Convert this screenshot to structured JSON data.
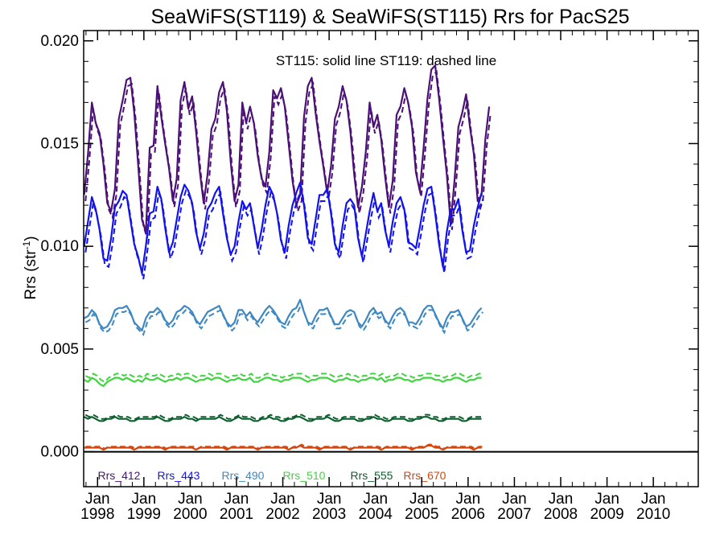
{
  "chart_data": {
    "type": "line",
    "title": "SeaWiFS(ST119) & SeaWiFS(ST115)  Rrs for PacS25",
    "annotation": "ST115: solid line   ST119: dashed line",
    "ylabel_main": "Rrs (str",
    "ylabel_sup": "-1",
    "ylabel_close": ")",
    "ylim": [
      -0.0017,
      0.0205
    ],
    "yticks": [
      "0.000",
      "0.005",
      "0.010",
      "0.015",
      "0.020"
    ],
    "ytick_values": [
      0.0,
      0.005,
      0.01,
      0.015,
      0.02
    ],
    "xlim": [
      1997.7,
      2010.97
    ],
    "xtick_month": "Jan",
    "xticks": [
      "1998",
      "1999",
      "2000",
      "2001",
      "2002",
      "2003",
      "2004",
      "2005",
      "2006",
      "2007",
      "2008",
      "2009",
      "2010"
    ],
    "x_start": 1997.71,
    "x_step": 0.0833,
    "styles": {
      "ST115": "solid",
      "ST119": "dashed"
    },
    "series": [
      {
        "name": "Rrs_412",
        "color": "#4b1177",
        "ST115": [
          0.0125,
          0.0145,
          0.017,
          0.016,
          0.0155,
          0.014,
          0.0121,
          0.0117,
          0.0128,
          0.0162,
          0.0171,
          0.0181,
          0.0182,
          0.0165,
          0.014,
          0.0113,
          0.0107,
          0.0148,
          0.0149,
          0.0178,
          0.0163,
          0.015,
          0.0138,
          0.0122,
          0.0133,
          0.0171,
          0.018,
          0.0167,
          0.0173,
          0.0156,
          0.0136,
          0.0121,
          0.0135,
          0.0157,
          0.0162,
          0.0175,
          0.018,
          0.0166,
          0.0141,
          0.0122,
          0.013,
          0.017,
          0.016,
          0.0168,
          0.016,
          0.0144,
          0.0133,
          0.0129,
          0.0146,
          0.0176,
          0.0172,
          0.0177,
          0.0168,
          0.015,
          0.0132,
          0.012,
          0.0125,
          0.0163,
          0.0178,
          0.0182,
          0.0165,
          0.0151,
          0.0139,
          0.0126,
          0.0139,
          0.0162,
          0.0168,
          0.0178,
          0.0171,
          0.0156,
          0.0135,
          0.0119,
          0.0129,
          0.0146,
          0.017,
          0.0158,
          0.0164,
          0.0152,
          0.0134,
          0.0119,
          0.0132,
          0.0164,
          0.0168,
          0.0177,
          0.017,
          0.0158,
          0.0136,
          0.0127,
          0.0148,
          0.0172,
          0.0186,
          0.0188,
          0.0172,
          0.0153,
          0.0135,
          0.0111,
          0.0132,
          0.0158,
          0.0165,
          0.0174,
          0.0158,
          0.0145,
          0.0122,
          0.0125,
          0.0152,
          0.0168
        ]
      },
      {
        "name": "Rrs_443",
        "color": "#1212ee",
        "ST115": [
          0.01,
          0.0112,
          0.0124,
          0.0118,
          0.0108,
          0.0094,
          0.0093,
          0.0104,
          0.0119,
          0.0122,
          0.0127,
          0.0125,
          0.0113,
          0.0101,
          0.0095,
          0.0087,
          0.01,
          0.0116,
          0.0117,
          0.0129,
          0.0123,
          0.0109,
          0.0097,
          0.0102,
          0.0113,
          0.0124,
          0.013,
          0.0127,
          0.0121,
          0.0107,
          0.0099,
          0.0106,
          0.0118,
          0.0121,
          0.0126,
          0.0129,
          0.0116,
          0.0104,
          0.0096,
          0.01,
          0.0112,
          0.0122,
          0.0118,
          0.0121,
          0.011,
          0.0099,
          0.0108,
          0.012,
          0.0129,
          0.0125,
          0.0116,
          0.0103,
          0.0097,
          0.011,
          0.012,
          0.0126,
          0.0131,
          0.012,
          0.0104,
          0.0101,
          0.0113,
          0.0125,
          0.0125,
          0.0128,
          0.0116,
          0.0101,
          0.0097,
          0.011,
          0.0121,
          0.0123,
          0.012,
          0.0104,
          0.0095,
          0.0106,
          0.0117,
          0.0126,
          0.0117,
          0.0121,
          0.0108,
          0.01,
          0.0112,
          0.0121,
          0.0124,
          0.0118,
          0.0102,
          0.0101,
          0.0099,
          0.0109,
          0.012,
          0.0128,
          0.0129,
          0.0116,
          0.0101,
          0.009,
          0.0107,
          0.0118,
          0.0118,
          0.0123,
          0.0108,
          0.0097,
          0.0098,
          0.011,
          0.0119,
          0.0126
        ]
      },
      {
        "name": "Rrs_490",
        "color": "#3d88c2",
        "ST115": [
          0.0065,
          0.0066,
          0.0069,
          0.0067,
          0.0062,
          0.006,
          0.0061,
          0.0064,
          0.0069,
          0.007,
          0.007,
          0.0071,
          0.0068,
          0.0063,
          0.0061,
          0.0059,
          0.0065,
          0.0068,
          0.0068,
          0.007,
          0.0068,
          0.0064,
          0.0062,
          0.0064,
          0.0068,
          0.0069,
          0.0071,
          0.007,
          0.0068,
          0.0064,
          0.0062,
          0.0065,
          0.0068,
          0.0069,
          0.007,
          0.0071,
          0.0067,
          0.0063,
          0.0061,
          0.0063,
          0.0069,
          0.0069,
          0.0066,
          0.0068,
          0.0065,
          0.0063,
          0.0066,
          0.0069,
          0.0071,
          0.0069,
          0.0066,
          0.0063,
          0.0062,
          0.0066,
          0.0069,
          0.007,
          0.0074,
          0.0068,
          0.0063,
          0.0062,
          0.0066,
          0.0069,
          0.0069,
          0.007,
          0.0066,
          0.0062,
          0.0062,
          0.0065,
          0.0068,
          0.0069,
          0.0068,
          0.0063,
          0.0061,
          0.0064,
          0.0068,
          0.007,
          0.0067,
          0.0068,
          0.0064,
          0.0062,
          0.0066,
          0.0069,
          0.007,
          0.0068,
          0.0063,
          0.0063,
          0.0062,
          0.0065,
          0.0069,
          0.0071,
          0.0071,
          0.0067,
          0.0063,
          0.006,
          0.0065,
          0.0068,
          0.0068,
          0.0069,
          0.0065,
          0.0061,
          0.0062,
          0.0065,
          0.0068,
          0.007
        ]
      },
      {
        "name": "Rrs_510",
        "color": "#3fd43f",
        "ST115": [
          0.0035,
          0.0034,
          0.0036,
          0.0035,
          0.0033,
          0.0032,
          0.0034,
          0.0035,
          0.0036,
          0.0036,
          0.0035,
          0.0036,
          0.0035,
          0.0034,
          0.0035,
          0.0034,
          0.0036,
          0.0035,
          0.0035,
          0.0036,
          0.0035,
          0.0034,
          0.0035,
          0.0035,
          0.0036,
          0.0035,
          0.0036,
          0.0036,
          0.0035,
          0.0034,
          0.0035,
          0.0035,
          0.0036,
          0.0035,
          0.0036,
          0.0036,
          0.0035,
          0.0034,
          0.0035,
          0.0035,
          0.0036,
          0.0035,
          0.0035,
          0.0036,
          0.0034,
          0.0034,
          0.0035,
          0.0036,
          0.0036,
          0.0035,
          0.0035,
          0.0034,
          0.0035,
          0.0035,
          0.0036,
          0.0036,
          0.0036,
          0.0035,
          0.0034,
          0.0035,
          0.0035,
          0.0036,
          0.0036,
          0.0036,
          0.0035,
          0.0034,
          0.0035,
          0.0035,
          0.0036,
          0.0035,
          0.0035,
          0.0034,
          0.0035,
          0.0035,
          0.0036,
          0.0036,
          0.0035,
          0.0036,
          0.0034,
          0.0035,
          0.0035,
          0.0036,
          0.0036,
          0.0035,
          0.0035,
          0.0034,
          0.0035,
          0.0035,
          0.0036,
          0.0036,
          0.0036,
          0.0035,
          0.0035,
          0.0034,
          0.0035,
          0.0035,
          0.0036,
          0.0036,
          0.0035,
          0.0034,
          0.0035,
          0.0035,
          0.0036,
          0.0036
        ]
      },
      {
        "name": "Rrs_555",
        "color": "#0d5e2e",
        "ST115": [
          0.0017,
          0.0016,
          0.0017,
          0.0016,
          0.0015,
          0.0015,
          0.0016,
          0.0016,
          0.0017,
          0.0016,
          0.0016,
          0.0016,
          0.0015,
          0.0015,
          0.0016,
          0.0016,
          0.0016,
          0.0016,
          0.0016,
          0.0017,
          0.0016,
          0.0015,
          0.0015,
          0.0016,
          0.0016,
          0.0016,
          0.0017,
          0.0016,
          0.0016,
          0.0015,
          0.0016,
          0.0016,
          0.0016,
          0.0016,
          0.0016,
          0.0017,
          0.0016,
          0.0015,
          0.0015,
          0.0016,
          0.0017,
          0.0016,
          0.0016,
          0.0016,
          0.0015,
          0.0015,
          0.0016,
          0.0016,
          0.0017,
          0.0016,
          0.0016,
          0.0015,
          0.0015,
          0.0016,
          0.0016,
          0.0017,
          0.0017,
          0.0016,
          0.0015,
          0.0015,
          0.0016,
          0.0016,
          0.0016,
          0.0017,
          0.0016,
          0.0015,
          0.0015,
          0.0016,
          0.0016,
          0.0016,
          0.0016,
          0.0015,
          0.0015,
          0.0016,
          0.0016,
          0.0017,
          0.0016,
          0.0016,
          0.0015,
          0.0015,
          0.0016,
          0.0016,
          0.0016,
          0.0016,
          0.0015,
          0.0015,
          0.0016,
          0.0016,
          0.0017,
          0.0017,
          0.0016,
          0.0016,
          0.0015,
          0.0015,
          0.0016,
          0.0016,
          0.0016,
          0.0016,
          0.0015,
          0.0015,
          0.0016,
          0.0016,
          0.0016,
          0.0016
        ]
      },
      {
        "name": "Rrs_670",
        "color": "#d2470f",
        "ST115": [
          0.0002,
          0.0002,
          0.0002,
          0.0002,
          0.0002,
          0.0001,
          0.0002,
          0.0002,
          0.0002,
          0.0002,
          0.0002,
          0.0002,
          0.0002,
          0.0001,
          0.0002,
          0.0002,
          0.0002,
          0.0002,
          0.0002,
          0.0002,
          0.0002,
          0.0001,
          0.0002,
          0.0002,
          0.0002,
          0.0002,
          0.0002,
          0.0002,
          0.0002,
          0.0001,
          0.0002,
          0.0002,
          0.0002,
          0.0002,
          0.0002,
          0.0002,
          0.0002,
          0.0001,
          0.0002,
          0.0002,
          0.0002,
          0.0002,
          0.0002,
          0.0002,
          0.0002,
          0.0001,
          0.0002,
          0.0002,
          0.0002,
          0.0002,
          0.0002,
          0.0002,
          0.0002,
          0.0001,
          0.0002,
          0.0002,
          0.0003,
          0.0002,
          0.0002,
          0.0002,
          0.0002,
          0.0001,
          0.0002,
          0.0002,
          0.0002,
          0.0002,
          0.0002,
          0.0002,
          0.0002,
          0.0001,
          0.0002,
          0.0002,
          0.0002,
          0.0002,
          0.0002,
          0.0002,
          0.0002,
          0.0001,
          0.0002,
          0.0002,
          0.0002,
          0.0002,
          0.0002,
          0.0002,
          0.0002,
          0.0001,
          0.0002,
          0.0002,
          0.0002,
          0.0003,
          0.0003,
          0.0002,
          0.0002,
          0.0001,
          0.0002,
          0.0002,
          0.0002,
          0.0002,
          0.0002,
          0.0002,
          0.0002,
          0.0001,
          0.0002,
          0.0002
        ]
      }
    ],
    "st119_offsets": [
      -0.0003,
      -0.0003,
      -0.0002,
      0.0002,
      0.0001,
      5e-05
    ]
  }
}
